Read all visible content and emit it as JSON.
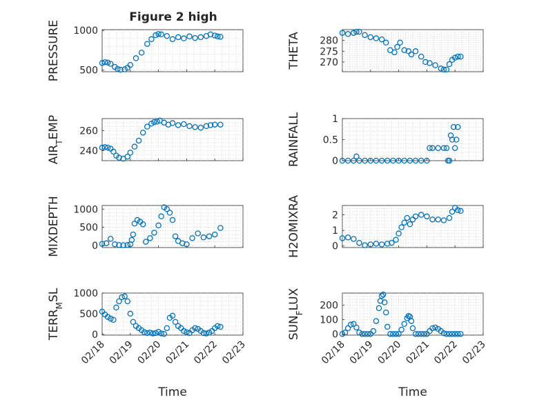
{
  "figure_title": "Figure 2 high",
  "xlabel": "Time",
  "x_tick_labels": [
    "02/18",
    "02/19",
    "02/20",
    "02/21",
    "02/22",
    "02/23"
  ],
  "marker_color": "#0072bd",
  "chart_data": [
    {
      "type": "scatter",
      "id": "pressure",
      "ylabel": "PRESSURE",
      "ylim": [
        480,
        1010
      ],
      "yticks": [
        500,
        1000
      ],
      "ytick_labels": [
        "500",
        "1000"
      ],
      "x_days": [
        0,
        0.1,
        0.2,
        0.3,
        0.45,
        0.55,
        0.65,
        0.8,
        0.9,
        1.0,
        1.2,
        1.4,
        1.6,
        1.75,
        1.9,
        2.0,
        2.1,
        2.3,
        2.5,
        2.7,
        2.9,
        3.1,
        3.3,
        3.5,
        3.7,
        3.85,
        4.0,
        4.1,
        4.2
      ],
      "y": [
        590,
        600,
        595,
        580,
        540,
        515,
        505,
        510,
        530,
        565,
        650,
        720,
        830,
        890,
        940,
        955,
        950,
        930,
        890,
        915,
        900,
        925,
        905,
        915,
        930,
        950,
        935,
        925,
        920
      ]
    },
    {
      "type": "scatter",
      "id": "theta",
      "ylabel": "THETA",
      "ylim": [
        265.5,
        285
      ],
      "yticks": [
        270,
        275,
        280
      ],
      "ytick_labels": [
        "270",
        "275",
        "280"
      ],
      "x_days": [
        0,
        0.2,
        0.4,
        0.5,
        0.6,
        0.8,
        1.0,
        1.2,
        1.4,
        1.55,
        1.7,
        1.85,
        1.95,
        2.05,
        2.2,
        2.35,
        2.45,
        2.6,
        2.8,
        2.95,
        3.1,
        3.3,
        3.5,
        3.6,
        3.7,
        3.8,
        3.9,
        4.0,
        4.1,
        4.2
      ],
      "y": [
        283.5,
        283,
        283.5,
        284,
        284,
        282.5,
        281.5,
        281,
        280.5,
        279,
        275.5,
        274.5,
        277,
        279,
        275.5,
        275,
        273.5,
        275,
        272.5,
        270,
        269.5,
        268.5,
        267,
        266.5,
        266.5,
        269,
        271,
        272,
        272.5,
        272.5
      ]
    },
    {
      "type": "scatter",
      "id": "air_temp",
      "ylabel": "AIR_TEMP",
      "ylim": [
        230,
        272
      ],
      "yticks": [
        240,
        260
      ],
      "ytick_labels": [
        "240",
        "260"
      ],
      "x_days": [
        0,
        0.1,
        0.2,
        0.3,
        0.4,
        0.5,
        0.6,
        0.75,
        0.9,
        1.0,
        1.15,
        1.3,
        1.45,
        1.6,
        1.75,
        1.85,
        1.95,
        2.05,
        2.2,
        2.35,
        2.5,
        2.7,
        2.9,
        3.1,
        3.3,
        3.5,
        3.7,
        3.85,
        4.0,
        4.2
      ],
      "y": [
        243,
        243.5,
        243,
        242,
        239,
        235,
        233,
        232,
        234,
        238,
        244,
        250,
        258,
        264,
        267,
        268.5,
        269,
        270,
        268,
        266,
        267.5,
        265.5,
        266.5,
        264.5,
        263.5,
        263,
        264.5,
        265.5,
        266,
        266
      ]
    },
    {
      "type": "scatter",
      "id": "rainfall",
      "ylabel": "RAINFALL",
      "ylim": [
        0,
        1
      ],
      "yticks": [
        0,
        0.5,
        1
      ],
      "ytick_labels": [
        "0",
        "0.5",
        "1"
      ],
      "x_days": [
        0,
        0.2,
        0.4,
        0.5,
        0.6,
        0.8,
        1.0,
        1.2,
        1.4,
        1.6,
        1.8,
        2.0,
        2.2,
        2.4,
        2.6,
        2.8,
        3.0,
        3.1,
        3.2,
        3.4,
        3.6,
        3.7,
        3.75,
        3.8,
        3.85,
        3.9,
        3.95,
        4.0,
        4.05,
        4.1
      ],
      "y": [
        0,
        0,
        0,
        0.1,
        0,
        0,
        0,
        0,
        0,
        0,
        0,
        0,
        0,
        0,
        0,
        0,
        0,
        0.3,
        0.3,
        0.3,
        0.3,
        0.3,
        0,
        0,
        0.6,
        0.5,
        0.8,
        0.3,
        0.5,
        0.8
      ]
    },
    {
      "type": "scatter",
      "id": "mixdepth",
      "ylabel": "MIXDEPTH",
      "ylim": [
        -60,
        1100
      ],
      "yticks": [
        0,
        500,
        1000
      ],
      "ytick_labels": [
        "0",
        "500",
        "1000"
      ],
      "x_days": [
        0,
        0.15,
        0.3,
        0.45,
        0.6,
        0.75,
        0.9,
        1.0,
        1.05,
        1.1,
        1.15,
        1.25,
        1.35,
        1.45,
        1.55,
        1.7,
        1.85,
        2.0,
        2.1,
        2.2,
        2.3,
        2.4,
        2.5,
        2.6,
        2.7,
        2.85,
        3.0,
        3.2,
        3.4,
        3.6,
        3.8,
        4.0,
        4.2
      ],
      "y": [
        40,
        60,
        180,
        30,
        10,
        5,
        10,
        30,
        150,
        300,
        600,
        700,
        650,
        580,
        100,
        200,
        350,
        550,
        800,
        1050,
        1000,
        900,
        700,
        250,
        120,
        60,
        30,
        200,
        330,
        220,
        250,
        300,
        480
      ]
    },
    {
      "type": "scatter",
      "id": "h2omixra",
      "ylabel": "H2OMIXRA",
      "ylim": [
        -0.1,
        2.6
      ],
      "yticks": [
        0,
        1,
        2
      ],
      "ytick_labels": [
        "0",
        "1",
        "2"
      ],
      "x_days": [
        0,
        0.2,
        0.4,
        0.6,
        0.8,
        1.0,
        1.2,
        1.4,
        1.6,
        1.75,
        1.9,
        2.0,
        2.1,
        2.2,
        2.3,
        2.4,
        2.5,
        2.6,
        2.8,
        3.0,
        3.2,
        3.4,
        3.6,
        3.8,
        3.9,
        4.0,
        4.1,
        4.2
      ],
      "y": [
        0.5,
        0.55,
        0.45,
        0.2,
        0.05,
        0.1,
        0.15,
        0.1,
        0.15,
        0.2,
        0.4,
        0.8,
        1.2,
        1.5,
        1.8,
        1.4,
        1.7,
        1.9,
        2.0,
        1.9,
        1.7,
        1.7,
        1.65,
        1.8,
        2.2,
        2.45,
        2.3,
        2.25
      ]
    },
    {
      "type": "scatter",
      "id": "terr_msl",
      "ylabel": "TERR_MSL",
      "ylim": [
        -20,
        1000
      ],
      "yticks": [
        0,
        500,
        1000
      ],
      "ytick_labels": [
        "0",
        "500",
        "1000"
      ],
      "x_days": [
        0,
        0.1,
        0.2,
        0.3,
        0.4,
        0.5,
        0.6,
        0.7,
        0.8,
        0.9,
        1.0,
        1.1,
        1.2,
        1.3,
        1.4,
        1.5,
        1.6,
        1.7,
        1.8,
        1.9,
        2.0,
        2.1,
        2.2,
        2.3,
        2.4,
        2.5,
        2.6,
        2.7,
        2.8,
        2.9,
        3.0,
        3.1,
        3.2,
        3.3,
        3.4,
        3.5,
        3.6,
        3.7,
        3.8,
        3.9,
        4.0,
        4.1,
        4.2
      ],
      "y": [
        550,
        480,
        420,
        380,
        350,
        650,
        800,
        900,
        920,
        800,
        500,
        300,
        200,
        150,
        100,
        50,
        30,
        40,
        20,
        30,
        60,
        20,
        10,
        150,
        400,
        450,
        300,
        200,
        150,
        80,
        50,
        30,
        100,
        150,
        130,
        80,
        30,
        20,
        40,
        80,
        150,
        200,
        180
      ]
    },
    {
      "type": "scatter",
      "id": "sun_flux",
      "ylabel": "SUN_FLUX",
      "ylim": [
        -8,
        285
      ],
      "yticks": [
        0,
        100,
        200
      ],
      "ytick_labels": [
        "0",
        "100",
        "200"
      ],
      "x_days": [
        0,
        0.1,
        0.2,
        0.3,
        0.4,
        0.5,
        0.6,
        0.7,
        0.8,
        0.9,
        1.0,
        1.1,
        1.2,
        1.3,
        1.35,
        1.4,
        1.45,
        1.5,
        1.55,
        1.6,
        1.7,
        1.8,
        1.9,
        2.0,
        2.1,
        2.2,
        2.3,
        2.35,
        2.4,
        2.45,
        2.5,
        2.6,
        2.7,
        2.8,
        2.9,
        3.0,
        3.1,
        3.2,
        3.3,
        3.4,
        3.5,
        3.6,
        3.7,
        3.8,
        3.9,
        4.0,
        4.1,
        4.2
      ],
      "y": [
        0,
        10,
        40,
        65,
        70,
        45,
        10,
        0,
        0,
        0,
        0,
        20,
        90,
        180,
        230,
        265,
        275,
        220,
        150,
        50,
        0,
        0,
        0,
        0,
        30,
        70,
        110,
        125,
        120,
        90,
        40,
        0,
        0,
        0,
        0,
        0,
        20,
        40,
        45,
        35,
        20,
        5,
        0,
        0,
        0,
        0,
        0,
        0
      ]
    }
  ]
}
